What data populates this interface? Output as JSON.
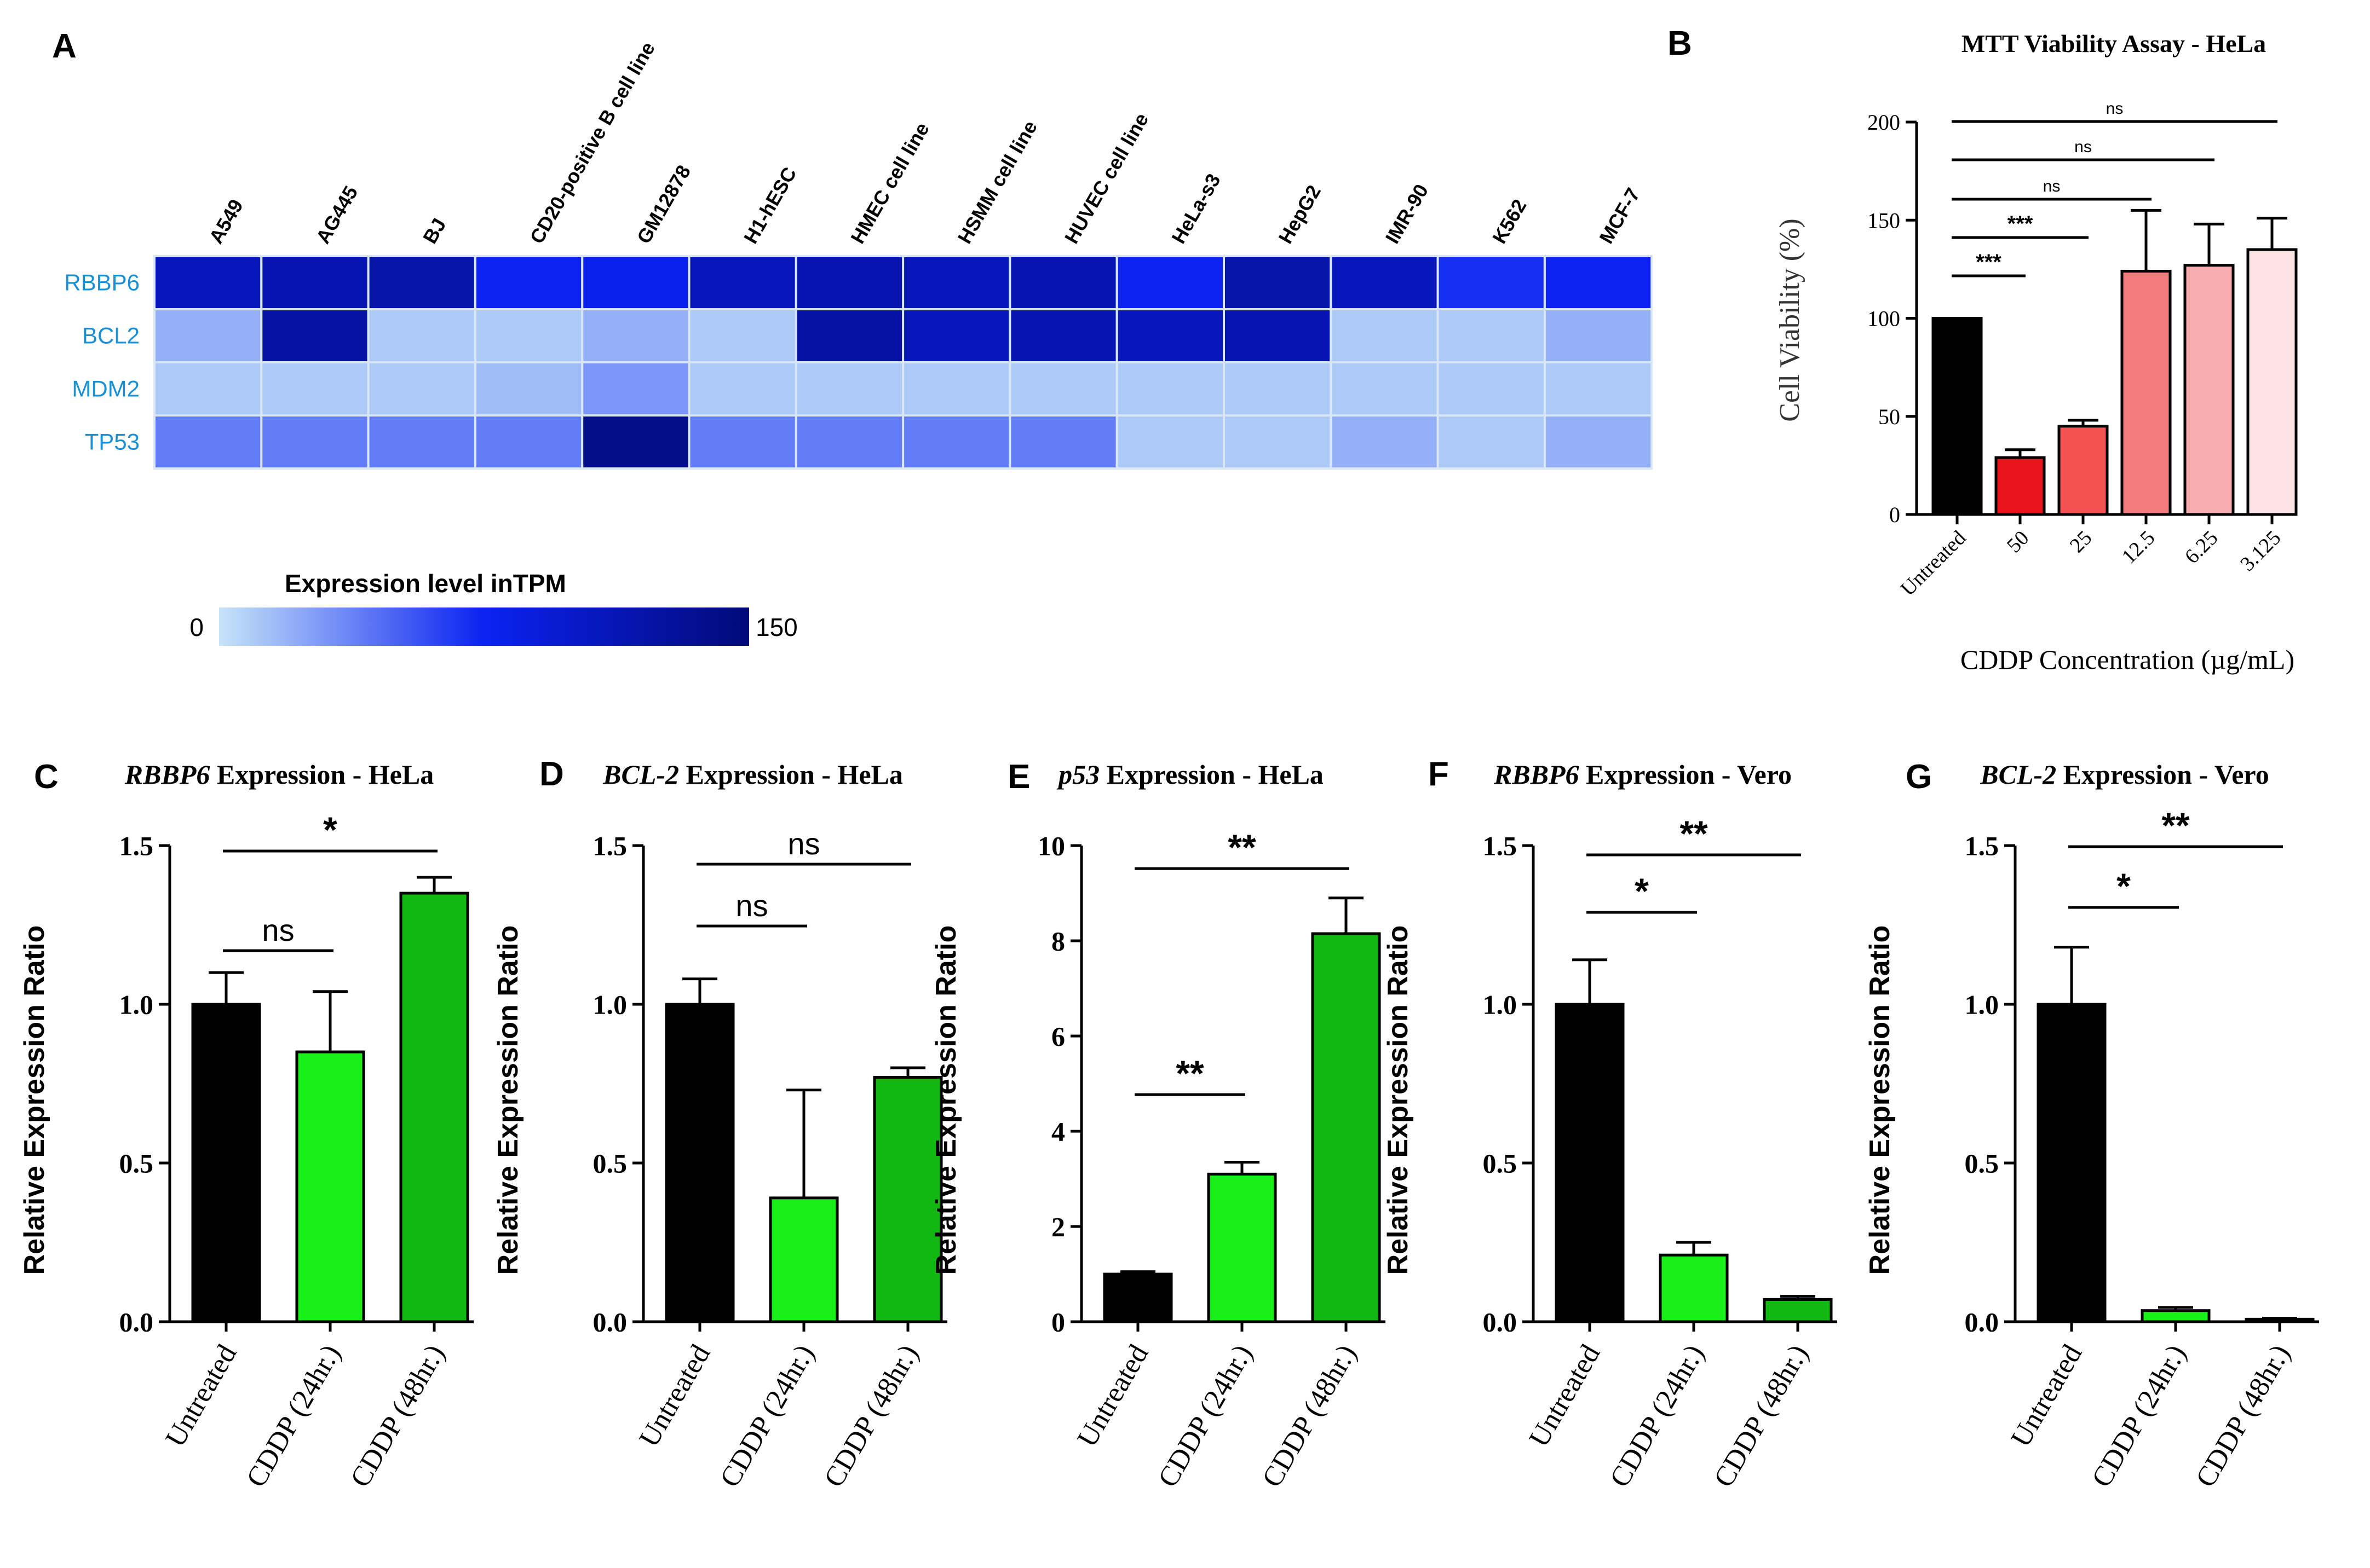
{
  "panel_letters": [
    "A",
    "B",
    "C",
    "D",
    "E",
    "F",
    "G"
  ],
  "chart_data": [
    {
      "panel": "A",
      "type": "heatmap",
      "columns": [
        "A549",
        "AG445",
        "BJ",
        "CD20-positive B cell line",
        "GM12878",
        "H1-hESC",
        "HMEC cell line",
        "HSMM cell line",
        "HUVEC cell line",
        "HeLa-s3",
        "HepG2",
        "IMR-90",
        "K562",
        "MCF-7"
      ],
      "rows": [
        "RBBP6",
        "BCL2",
        "MDM2",
        "TP53"
      ],
      "values": [
        [
          110,
          115,
          120,
          75,
          80,
          110,
          115,
          110,
          115,
          75,
          120,
          110,
          70,
          75
        ],
        [
          20,
          125,
          10,
          10,
          20,
          10,
          125,
          110,
          115,
          110,
          115,
          10,
          10,
          20
        ],
        [
          10,
          10,
          10,
          15,
          30,
          10,
          10,
          10,
          10,
          10,
          10,
          10,
          10,
          10
        ],
        [
          40,
          40,
          40,
          40,
          140,
          40,
          40,
          40,
          40,
          10,
          10,
          20,
          10,
          20
        ]
      ],
      "colorbar_title": "Expression level inTPM",
      "colorbar_min_label": "0",
      "colorbar_max_label": "150",
      "range": [
        0,
        150
      ],
      "colors": {
        "low": "#c6e4f8",
        "mid": "#0b22f2",
        "high": "#020a78"
      }
    },
    {
      "panel": "B",
      "type": "bar",
      "title": "MTT Viability Assay - HeLa",
      "ylabel": "Cell Viability (%)",
      "xlabel": "CDDP Concentration (µg/mL)",
      "categories": [
        "Untreated",
        "50",
        "25",
        "12.5",
        "6.25",
        "3.125"
      ],
      "values": [
        100,
        29,
        45,
        124,
        127,
        135
      ],
      "errors": [
        0,
        4,
        3,
        31,
        21,
        16
      ],
      "colors": [
        "#000000",
        "#e8141c",
        "#f45252",
        "#f47c7c",
        "#f7adad",
        "#fde3e3"
      ],
      "ylim": [
        0,
        200
      ],
      "yticks": [
        "0",
        "50",
        "100",
        "150",
        "200"
      ],
      "significance": [
        {
          "from": 0,
          "to": 1,
          "label": "***"
        },
        {
          "from": 0,
          "to": 2,
          "label": "***"
        },
        {
          "from": 0,
          "to": 3,
          "label": "ns"
        },
        {
          "from": 0,
          "to": 4,
          "label": "ns"
        },
        {
          "from": 0,
          "to": 5,
          "label": "ns"
        }
      ]
    },
    {
      "panel": "C",
      "type": "bar",
      "title_gene": "RBBP6",
      "title_rest": " Expression  - HeLa",
      "ylabel": "Relative Expression Ratio",
      "categories": [
        "Untreated",
        "CDDP (24hr.)",
        "CDDP (48hr.)"
      ],
      "values": [
        1.0,
        0.85,
        1.35
      ],
      "errors": [
        0.1,
        0.19,
        0.05
      ],
      "colors": [
        "#000000",
        "#19f019",
        "#10b810"
      ],
      "ylim": [
        0,
        1.5
      ],
      "yticks": [
        "0.0",
        "0.5",
        "1.0",
        "1.5"
      ],
      "significance": [
        {
          "from": 0,
          "to": 1,
          "label": "ns"
        },
        {
          "from": 0,
          "to": 2,
          "label": "*"
        }
      ]
    },
    {
      "panel": "D",
      "type": "bar",
      "title_gene": "BCL-2",
      "title_rest": " Expression  - HeLa",
      "ylabel": "Relative Expression Ratio",
      "categories": [
        "Untreated",
        "CDDP (24hr.)",
        "CDDP (48hr.)"
      ],
      "values": [
        1.0,
        0.39,
        0.77
      ],
      "errors": [
        0.08,
        0.34,
        0.03
      ],
      "colors": [
        "#000000",
        "#19f019",
        "#10b810"
      ],
      "ylim": [
        0,
        1.5
      ],
      "yticks": [
        "0.0",
        "0.5",
        "1.0",
        "1.5"
      ],
      "significance": [
        {
          "from": 0,
          "to": 1,
          "label": "ns"
        },
        {
          "from": 0,
          "to": 2,
          "label": "ns"
        }
      ]
    },
    {
      "panel": "E",
      "type": "bar",
      "title_gene": "p53",
      "title_rest": " Expression  - HeLa",
      "ylabel": "Relative Expression Ratio",
      "categories": [
        "Untreated",
        "CDDP (24hr.)",
        "CDDP (48hr.)"
      ],
      "values": [
        1.0,
        3.1,
        8.15
      ],
      "errors": [
        0.05,
        0.25,
        0.75
      ],
      "colors": [
        "#000000",
        "#19f019",
        "#10b810"
      ],
      "ylim": [
        0,
        10
      ],
      "yticks": [
        "0",
        "2",
        "4",
        "6",
        "8",
        "10"
      ],
      "significance": [
        {
          "from": 0,
          "to": 1,
          "label": "**"
        },
        {
          "from": 0,
          "to": 2,
          "label": "**"
        }
      ]
    },
    {
      "panel": "F",
      "type": "bar",
      "title_gene": "RBBP6",
      "title_rest": " Expression  - Vero",
      "ylabel": "Relative Expression Ratio",
      "categories": [
        "Untreated",
        "CDDP (24hr.)",
        "CDDP (48hr.)"
      ],
      "values": [
        1.0,
        0.21,
        0.07
      ],
      "errors": [
        0.14,
        0.04,
        0.01
      ],
      "colors": [
        "#000000",
        "#19f019",
        "#10b810"
      ],
      "ylim": [
        0,
        1.5
      ],
      "yticks": [
        "0.0",
        "0.5",
        "1.0",
        "1.5"
      ],
      "significance": [
        {
          "from": 0,
          "to": 1,
          "label": "*"
        },
        {
          "from": 0,
          "to": 2,
          "label": "**"
        }
      ]
    },
    {
      "panel": "G",
      "type": "bar",
      "title_gene": "BCL-2",
      "title_rest": " Expression  - Vero",
      "ylabel": "Relative Expression Ratio",
      "categories": [
        "Untreated",
        "CDDP (24hr.)",
        "CDDP (48hr.)"
      ],
      "values": [
        1.0,
        0.035,
        0.008
      ],
      "errors": [
        0.18,
        0.01,
        0.003
      ],
      "colors": [
        "#000000",
        "#19f019",
        "#10b810"
      ],
      "ylim": [
        0,
        1.5
      ],
      "yticks": [
        "0.0",
        "0.5",
        "1.0",
        "1.5"
      ],
      "significance": [
        {
          "from": 0,
          "to": 1,
          "label": "*"
        },
        {
          "from": 0,
          "to": 2,
          "label": "**"
        }
      ]
    }
  ]
}
